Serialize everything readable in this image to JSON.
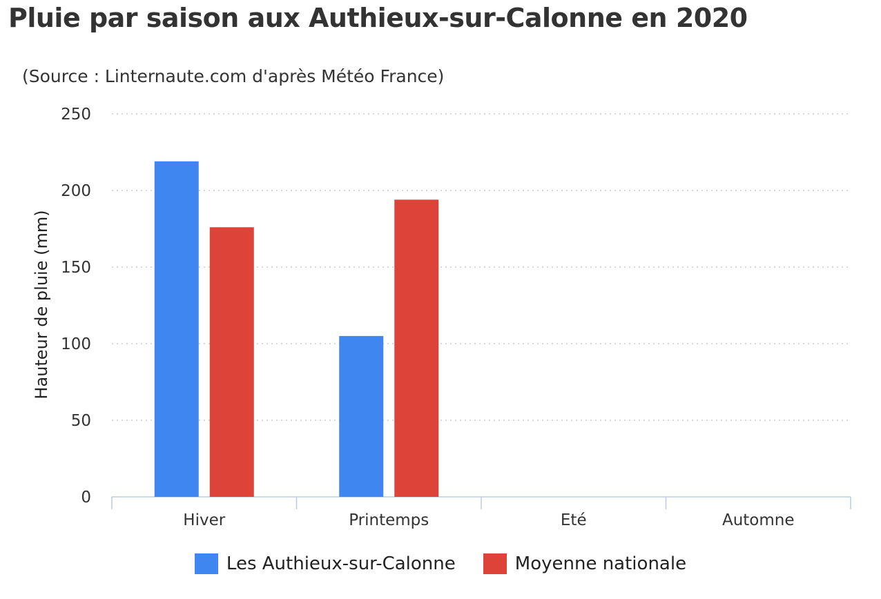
{
  "chart_data": {
    "type": "bar",
    "title": "Pluie par saison aux Authieux-sur-Calonne en 2020",
    "subtitle": "(Source : Linternaute.com d'après Météo France)",
    "xlabel": "",
    "ylabel": "Hauteur de pluie (mm)",
    "categories": [
      "Hiver",
      "Printemps",
      "Eté",
      "Automne"
    ],
    "ylim": [
      0,
      250
    ],
    "yticks": [
      "0",
      "50",
      "100",
      "150",
      "200",
      "250"
    ],
    "grid": "horizontal dotted",
    "legend_position": "bottom",
    "series": [
      {
        "name": "Les Authieux-sur-Calonne",
        "color": "#3f86f1",
        "values": [
          219,
          105,
          null,
          null
        ]
      },
      {
        "name": "Moyenne nationale",
        "color": "#de4339",
        "values": [
          176,
          194,
          null,
          null
        ]
      }
    ]
  }
}
